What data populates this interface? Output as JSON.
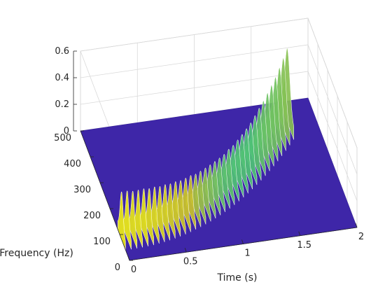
{
  "chart_data": {
    "type": "surface",
    "view": "3d-spectrogram",
    "title": "",
    "xlabel": "Time (s)",
    "ylabel": "Frequency (Hz)",
    "zlabel": "",
    "xlim": [
      0,
      2
    ],
    "ylim": [
      0,
      500
    ],
    "zlim": [
      0,
      0.6
    ],
    "xticks": [
      "0",
      "0.5",
      "1",
      "1.5",
      "2"
    ],
    "yticks": [
      "0",
      "100",
      "200",
      "300",
      "400",
      "500"
    ],
    "zticks": [
      "0",
      "0.2",
      "0.4",
      "0.6"
    ],
    "grid": true,
    "colormap": "parula",
    "signal": {
      "description_values": "chirp ridge amplitude at sampled time frames",
      "ridge_freq_start_hz": 80,
      "ridge_freq_end_hz": 420,
      "frames": [
        0.0,
        0.05,
        0.1,
        0.15,
        0.2,
        0.25,
        0.3,
        0.35,
        0.4,
        0.45,
        0.5,
        0.55,
        0.6,
        0.65,
        0.7,
        0.75,
        0.8,
        0.85,
        0.9,
        0.95,
        1.0,
        1.05,
        1.1,
        1.15,
        1.2,
        1.25,
        1.3,
        1.35,
        1.4,
        1.45,
        1.5,
        1.55,
        1.6,
        1.65,
        1.7,
        1.75
      ],
      "peak_amplitude": [
        0.36,
        0.36,
        0.35,
        0.35,
        0.35,
        0.34,
        0.34,
        0.33,
        0.33,
        0.32,
        0.32,
        0.31,
        0.31,
        0.31,
        0.3,
        0.3,
        0.3,
        0.3,
        0.3,
        0.3,
        0.3,
        0.31,
        0.31,
        0.32,
        0.33,
        0.34,
        0.35,
        0.37,
        0.39,
        0.41,
        0.43,
        0.45,
        0.47,
        0.5,
        0.53,
        0.56
      ]
    },
    "colors": {
      "floor": "#3e26a8",
      "grid": "#d9d9d9",
      "axis": "#262626"
    }
  }
}
